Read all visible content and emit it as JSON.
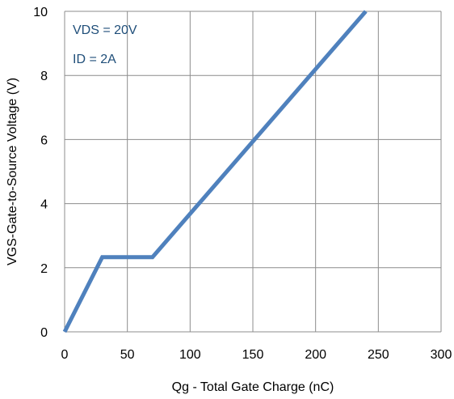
{
  "chart_data": {
    "type": "line",
    "title": "",
    "xlabel": "Qg - Total Gate Charge (nC)",
    "ylabel": "VGS-Gate-to-Source Voltage (V)",
    "xlim": [
      0,
      300
    ],
    "ylim": [
      0,
      10
    ],
    "xticks": [
      0,
      50,
      100,
      150,
      200,
      250,
      300
    ],
    "yticks": [
      0,
      2,
      4,
      6,
      8,
      10
    ],
    "grid": true,
    "series": [
      {
        "color": "#4F81BD",
        "x": [
          0,
          30,
          70,
          240
        ],
        "y": [
          0,
          2.33,
          2.33,
          10
        ]
      }
    ],
    "annotations": [
      {
        "text": "VDS = 20V",
        "color": "#1F4E79"
      },
      {
        "text": "ID = 2A",
        "color": "#1F4E79"
      }
    ]
  }
}
